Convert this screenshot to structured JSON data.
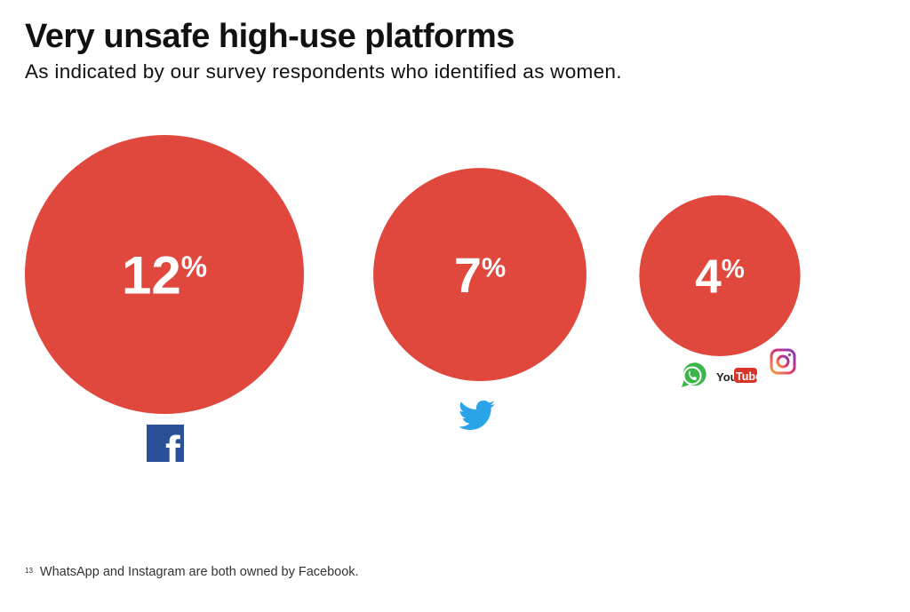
{
  "header": {
    "title": "Very unsafe high-use platforms",
    "subtitle": "As indicated by our survey respondents who identified as women."
  },
  "chart_data": {
    "type": "bubble",
    "title": "Very unsafe high-use platforms",
    "subtitle": "As indicated by our survey respondents who identified as women.",
    "unit": "%",
    "values": [
      12,
      7,
      4
    ],
    "value_labels": [
      "12",
      "7",
      "4"
    ],
    "percent_sign": "%",
    "platforms": [
      [
        "facebook"
      ],
      [
        "twitter"
      ],
      [
        "whatsapp",
        "youtube",
        "instagram"
      ]
    ],
    "bubble_color": "#E0473D",
    "label_color": "#FFFFFF"
  },
  "logos": {
    "youtube_you": "You",
    "youtube_tube": "Tube",
    "facebook_f": "f"
  },
  "colors": {
    "facebook": "#2A5198",
    "twitter": "#2AA3E8",
    "whatsapp": "#3CB54A",
    "youtube_red": "#D93429",
    "instagram": "#E0306E"
  },
  "footnote": {
    "marker": "13",
    "text": "WhatsApp and Instagram are both owned by Facebook."
  }
}
